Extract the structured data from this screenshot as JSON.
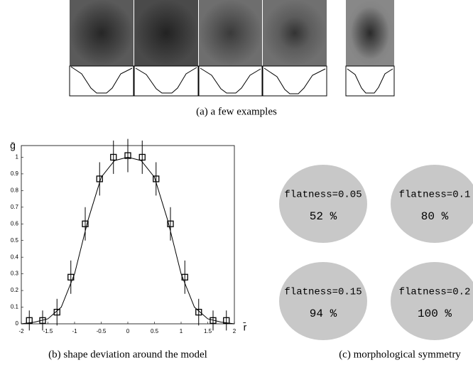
{
  "panel_a": {
    "caption": "(a) a few examples"
  },
  "chart_data": {
    "type": "scatter",
    "caption": "(b) shape deviation around the model",
    "x_label": "r̄",
    "y_label": "ḡ",
    "x": [
      -1.85,
      -1.6,
      -1.33,
      -1.07,
      -0.8,
      -0.53,
      -0.27,
      0,
      0.27,
      0.53,
      0.8,
      1.07,
      1.33,
      1.6,
      1.85
    ],
    "values": [
      0.02,
      0.02,
      0.07,
      0.28,
      0.6,
      0.87,
      1.0,
      1.01,
      1.0,
      0.87,
      0.6,
      0.28,
      0.07,
      0.02,
      0.02
    ],
    "errors": [
      0.06,
      0.06,
      0.08,
      0.1,
      0.1,
      0.1,
      0.1,
      0.1,
      0.1,
      0.1,
      0.1,
      0.1,
      0.08,
      0.06,
      0.06
    ],
    "curve": {
      "x": [
        -2,
        -1.75,
        -1.5,
        -1.25,
        -1,
        -0.75,
        -0.5,
        -0.25,
        0,
        0.25,
        0.5,
        0.75,
        1,
        1.25,
        1.5,
        1.75,
        2
      ],
      "values": [
        0,
        0.01,
        0.03,
        0.1,
        0.3,
        0.62,
        0.88,
        0.98,
        1.0,
        0.98,
        0.88,
        0.62,
        0.3,
        0.1,
        0.03,
        0.01,
        0
      ]
    },
    "color": "#000000",
    "xlim": [
      -2,
      2
    ],
    "ylim": [
      0,
      1.07
    ],
    "xticks": [
      -2,
      -1.5,
      -1,
      -0.5,
      0,
      0.5,
      1,
      1.5,
      2
    ],
    "yticks": [
      0,
      0.1,
      0.2,
      0.3,
      0.4,
      0.5,
      0.6,
      0.7,
      0.8,
      0.9,
      1
    ]
  },
  "panel_c": {
    "caption": "(c) morphological symmetry",
    "items": [
      {
        "label": "flatness=0.05",
        "value": "52 %"
      },
      {
        "label": "flatness=0.1",
        "value": "80 %"
      },
      {
        "label": "flatness=0.15",
        "value": "94 %"
      },
      {
        "label": "flatness=0.2",
        "value": "100 %"
      }
    ]
  }
}
